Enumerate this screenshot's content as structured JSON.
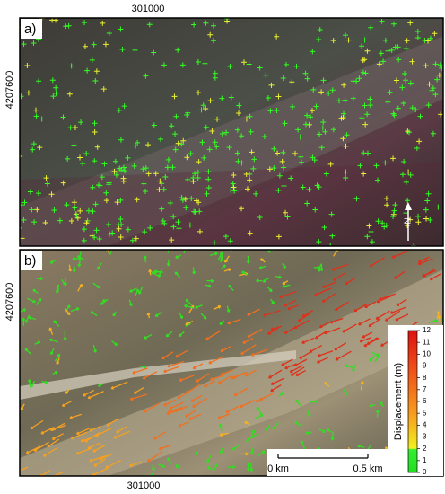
{
  "panels": [
    {
      "label": "a)",
      "x_label": "301000",
      "y_label": "4207600"
    },
    {
      "label": "b)",
      "x_label": "301000",
      "y_label": "4207600"
    }
  ],
  "colorbar": {
    "title": "Displacement (m)",
    "lim": [
      0,
      12
    ],
    "ticks": [
      0,
      1,
      2,
      3,
      4,
      5,
      6,
      7,
      8,
      9,
      10,
      11,
      12
    ]
  },
  "scalebar": {
    "labels": [
      "0 km",
      "0.5 km"
    ]
  },
  "north": "N"
}
